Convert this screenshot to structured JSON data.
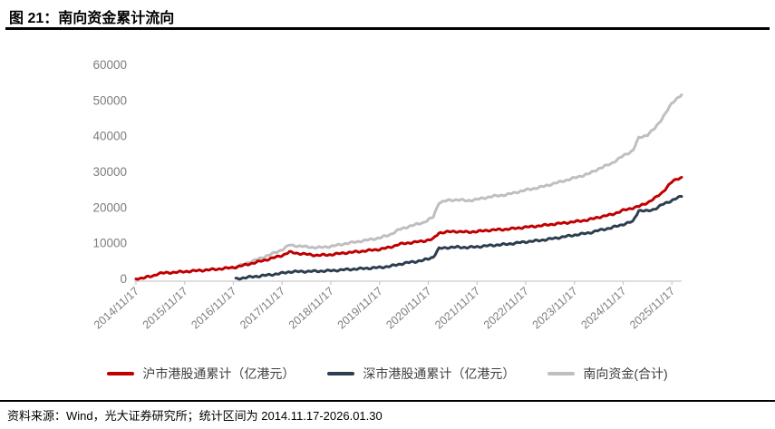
{
  "figure": {
    "title": "图 21：南向资金累计流向",
    "source_note": "资料来源：Wind，光大证券研究所；统计区间为 2014.11.17-2026.01.30"
  },
  "chart_data": {
    "type": "line",
    "title": "南向资金累计流向",
    "unit": "亿港元",
    "grid": false,
    "legend_position": "bottom",
    "xlim": [
      0,
      11.2
    ],
    "ylim": [
      0,
      60000
    ],
    "x_axis": {
      "kind": "date",
      "start_date": "2014/11/17",
      "end_date": "2026/01/30",
      "ticks": [
        {
          "t": 0,
          "label": "2014/11/17"
        },
        {
          "t": 1,
          "label": "2015/11/17"
        },
        {
          "t": 2,
          "label": "2016/11/17"
        },
        {
          "t": 3,
          "label": "2017/11/17"
        },
        {
          "t": 4,
          "label": "2018/11/17"
        },
        {
          "t": 5,
          "label": "2019/11/17"
        },
        {
          "t": 6,
          "label": "2020/11/17"
        },
        {
          "t": 7,
          "label": "2021/11/17"
        },
        {
          "t": 8,
          "label": "2022/11/17"
        },
        {
          "t": 9,
          "label": "2023/11/17"
        },
        {
          "t": 10,
          "label": "2024/11/17"
        },
        {
          "t": 11,
          "label": "2025/11/17"
        }
      ]
    },
    "y_axis": {
      "ticks": [
        0,
        10000,
        20000,
        30000,
        40000,
        50000,
        60000
      ]
    },
    "series": [
      {
        "name": "沪市港股通累计（亿港元）",
        "color": "#c00000",
        "points": [
          [
            0,
            0
          ],
          [
            0.15,
            300
          ],
          [
            0.35,
            800
          ],
          [
            0.45,
            1500
          ],
          [
            0.62,
            1700
          ],
          [
            0.8,
            1850
          ],
          [
            1.0,
            2050
          ],
          [
            1.3,
            2350
          ],
          [
            1.6,
            2650
          ],
          [
            1.9,
            3050
          ],
          [
            2.05,
            3300
          ],
          [
            2.3,
            4100
          ],
          [
            2.6,
            5100
          ],
          [
            2.9,
            6200
          ],
          [
            3.0,
            6600
          ],
          [
            3.15,
            7500
          ],
          [
            3.3,
            7200
          ],
          [
            3.5,
            6900
          ],
          [
            3.72,
            6600
          ],
          [
            4.0,
            6800
          ],
          [
            4.3,
            7300
          ],
          [
            4.6,
            7700
          ],
          [
            5.0,
            8300
          ],
          [
            5.2,
            8800
          ],
          [
            5.4,
            9700
          ],
          [
            5.6,
            10100
          ],
          [
            5.9,
            10600
          ],
          [
            6.1,
            11200
          ],
          [
            6.22,
            12900
          ],
          [
            6.4,
            13200
          ],
          [
            6.6,
            13300
          ],
          [
            6.8,
            13100
          ],
          [
            7.0,
            13300
          ],
          [
            7.3,
            13700
          ],
          [
            7.6,
            13900
          ],
          [
            8.0,
            14500
          ],
          [
            8.3,
            14900
          ],
          [
            8.6,
            15400
          ],
          [
            9.0,
            16000
          ],
          [
            9.3,
            16600
          ],
          [
            9.5,
            17300
          ],
          [
            9.75,
            18000
          ],
          [
            9.9,
            18700
          ],
          [
            10.0,
            19200
          ],
          [
            10.2,
            19900
          ],
          [
            10.32,
            20300
          ],
          [
            10.5,
            21400
          ],
          [
            10.65,
            22600
          ],
          [
            10.8,
            24200
          ],
          [
            11.0,
            27200
          ],
          [
            11.1,
            28000
          ],
          [
            11.2,
            28500
          ]
        ]
      },
      {
        "name": "深市港股通累计（亿港元）",
        "color": "#2e3e50",
        "points": [
          [
            2.05,
            0
          ],
          [
            2.3,
            450
          ],
          [
            2.6,
            900
          ],
          [
            2.9,
            1400
          ],
          [
            3.0,
            1600
          ],
          [
            3.15,
            2000
          ],
          [
            3.3,
            2050
          ],
          [
            3.5,
            2100
          ],
          [
            3.72,
            2150
          ],
          [
            4.0,
            2300
          ],
          [
            4.3,
            2600
          ],
          [
            4.6,
            2850
          ],
          [
            5.0,
            3200
          ],
          [
            5.2,
            3500
          ],
          [
            5.4,
            4100
          ],
          [
            5.6,
            4600
          ],
          [
            5.9,
            5200
          ],
          [
            6.1,
            6100
          ],
          [
            6.22,
            8500
          ],
          [
            6.4,
            8800
          ],
          [
            6.6,
            8900
          ],
          [
            6.8,
            8800
          ],
          [
            7.0,
            9000
          ],
          [
            7.3,
            9400
          ],
          [
            7.6,
            9700
          ],
          [
            8.0,
            10400
          ],
          [
            8.3,
            10800
          ],
          [
            8.6,
            11400
          ],
          [
            9.0,
            12300
          ],
          [
            9.3,
            12900
          ],
          [
            9.5,
            13600
          ],
          [
            9.75,
            14300
          ],
          [
            9.9,
            14900
          ],
          [
            10.0,
            15300
          ],
          [
            10.2,
            16100
          ],
          [
            10.32,
            19200
          ],
          [
            10.5,
            19000
          ],
          [
            10.65,
            19600
          ],
          [
            10.8,
            20800
          ],
          [
            11.0,
            22000
          ],
          [
            11.1,
            22600
          ],
          [
            11.2,
            23100
          ]
        ]
      },
      {
        "name": "南向资金(合计)",
        "color": "#bfbfbf",
        "points": [
          [
            2.05,
            3300
          ],
          [
            2.3,
            4550
          ],
          [
            2.6,
            6000
          ],
          [
            2.9,
            7600
          ],
          [
            3.0,
            8200
          ],
          [
            3.15,
            9500
          ],
          [
            3.3,
            9250
          ],
          [
            3.5,
            9000
          ],
          [
            3.72,
            8750
          ],
          [
            4.0,
            9100
          ],
          [
            4.3,
            9900
          ],
          [
            4.6,
            10550
          ],
          [
            5.0,
            11500
          ],
          [
            5.2,
            12300
          ],
          [
            5.4,
            13800
          ],
          [
            5.6,
            14700
          ],
          [
            5.9,
            15800
          ],
          [
            6.1,
            17300
          ],
          [
            6.22,
            21400
          ],
          [
            6.4,
            22000
          ],
          [
            6.6,
            22200
          ],
          [
            6.8,
            21900
          ],
          [
            7.0,
            22300
          ],
          [
            7.3,
            23100
          ],
          [
            7.6,
            23600
          ],
          [
            8.0,
            24900
          ],
          [
            8.3,
            25700
          ],
          [
            8.6,
            26800
          ],
          [
            9.0,
            28300
          ],
          [
            9.3,
            29500
          ],
          [
            9.5,
            30900
          ],
          [
            9.75,
            32300
          ],
          [
            9.9,
            33600
          ],
          [
            10.0,
            34500
          ],
          [
            10.2,
            36000
          ],
          [
            10.32,
            39500
          ],
          [
            10.5,
            40400
          ],
          [
            10.65,
            42200
          ],
          [
            10.8,
            45000
          ],
          [
            11.0,
            49200
          ],
          [
            11.1,
            50600
          ],
          [
            11.2,
            51600
          ]
        ]
      }
    ]
  }
}
